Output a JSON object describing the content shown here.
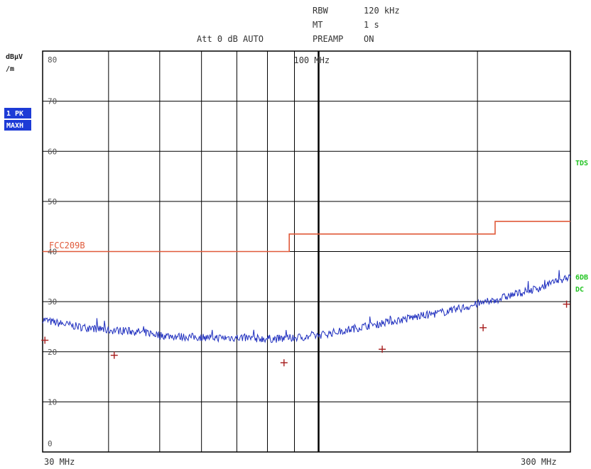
{
  "header": {
    "rbw_label": "RBW",
    "rbw_value": "120 kHz",
    "mt_label": "MT",
    "mt_value": "1 s",
    "att_text": "Att 0 dB AUTO",
    "preamp_label": "PREAMP",
    "preamp_value": "ON"
  },
  "y_unit_line1": "dBµV",
  "y_unit_line2": "/m",
  "trace_badge": {
    "line1": "1 PK",
    "line2": "MAXH"
  },
  "side_labels": {
    "tds": "TDS",
    "sixdb": "6DB",
    "dc": "DC"
  },
  "colors": {
    "trace": "#1f2fbf",
    "limit": "#e05a3a",
    "marker": "#a61c1c",
    "side_text": "#22c422",
    "badge_bg": "#1d3bd6",
    "grid": "#000000"
  },
  "chart_data": {
    "type": "line",
    "x_scale": "log",
    "x_range_mhz": [
      30,
      300
    ],
    "ylim": [
      0,
      80
    ],
    "y_ticks": [
      0,
      10,
      20,
      30,
      40,
      50,
      60,
      70,
      80
    ],
    "x_tick_labels": [
      "30 MHz",
      "100 MHz",
      "300 MHz"
    ],
    "x_tick_values_mhz": [
      30,
      100,
      300
    ],
    "grid": true,
    "limit_line": {
      "name": "FCC209B",
      "x_mhz": [
        30,
        88,
        88,
        216,
        216,
        300
      ],
      "y": [
        40,
        40,
        43.5,
        43.5,
        46,
        46
      ]
    },
    "series": [
      {
        "x_mhz": [
          30,
          31,
          33,
          35,
          38,
          40,
          43,
          45,
          48,
          50,
          55,
          60,
          65,
          70,
          75,
          80,
          85,
          88,
          92,
          96,
          100,
          105,
          110,
          115,
          120,
          125,
          130,
          140,
          150,
          160,
          170,
          180,
          190,
          200,
          210,
          216,
          225,
          240,
          255,
          270,
          285,
          300
        ],
        "y": [
          26.5,
          26,
          25.5,
          25,
          24.6,
          24.3,
          24.2,
          24,
          23.7,
          23.3,
          23,
          22.9,
          22.8,
          22.8,
          22.7,
          22.6,
          22.6,
          22.7,
          22.9,
          23,
          23.3,
          23.7,
          24.1,
          24.5,
          24.9,
          25.3,
          25.6,
          26.2,
          26.8,
          27.3,
          27.8,
          28.3,
          28.9,
          29.5,
          30,
          30.3,
          30.9,
          31.7,
          32.4,
          33.2,
          34.2,
          35.2
        ]
      }
    ],
    "markers": {
      "x_mhz": [
        30.3,
        41,
        86,
        132,
        205,
        295
      ],
      "y": [
        22.3,
        19.3,
        17.8,
        20.5,
        24.8,
        29.5
      ]
    }
  }
}
